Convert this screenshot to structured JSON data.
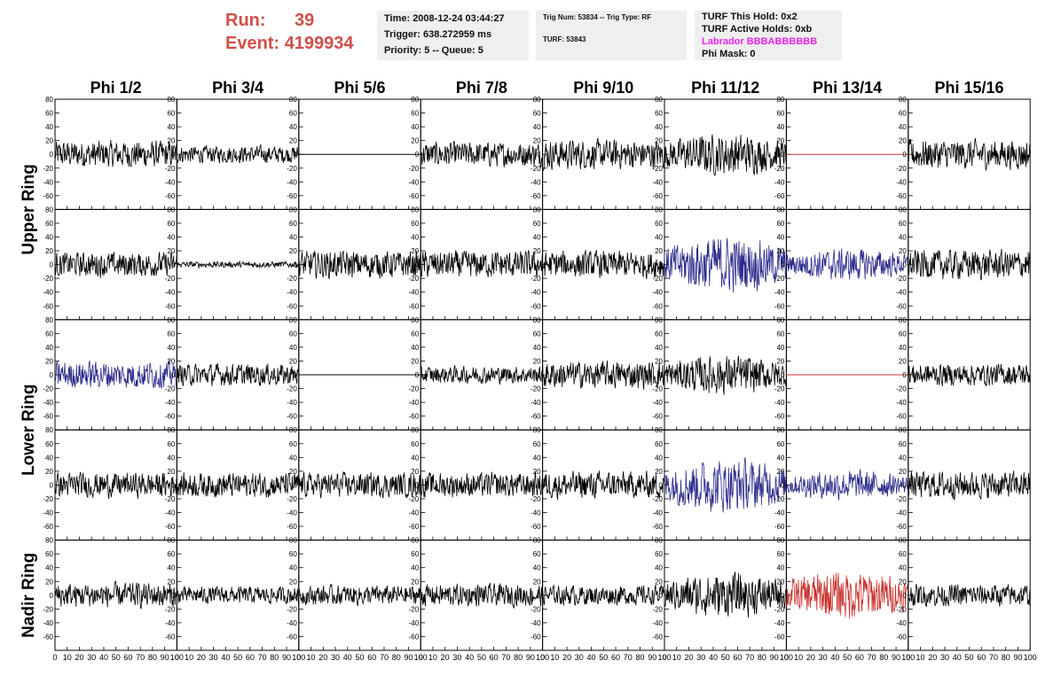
{
  "header": {
    "run_label": "Run:",
    "run_value": "39",
    "event_label": "Event:",
    "event_value": "4199934"
  },
  "info_box_1": {
    "time": "Time: 2008-12-24 03:44:27",
    "trigger": "Trigger: 638.272959 ms",
    "priority": "Priority: 5 -- Queue: 5"
  },
  "info_box_2": {
    "trig": "Trig Num: 53834 -- Trig Type: RF",
    "turf": "TURF: 53843"
  },
  "info_box_3": {
    "hold": "TURF This Hold: 0x2",
    "active": "TURF Active Holds: 0xb",
    "labrador": "Labrador BBBABBBBBB",
    "phimask": "Phi Mask: 0"
  },
  "colors": {
    "black": "#000000",
    "blue": "#2b2b8c",
    "red": "#c8302c",
    "run_text": "#d0504a",
    "labrador": "#ee22ee"
  },
  "chart_data": {
    "type": "line",
    "column_titles": [
      "Phi 1/2",
      "Phi 3/4",
      "Phi 5/6",
      "Phi 7/8",
      "Phi 9/10",
      "Phi 11/12",
      "Phi 13/14",
      "Phi 15/16"
    ],
    "ring_labels": [
      {
        "label": "Upper Ring"
      },
      {
        "label": "Lower Ring"
      },
      {
        "label": "Nadir Ring"
      }
    ],
    "y_ticks": [
      80,
      60,
      40,
      20,
      0,
      -20,
      -40,
      -60
    ],
    "x_ticks": [
      "0",
      "10",
      "20",
      "30",
      "40",
      "50",
      "60",
      "70",
      "80",
      "90",
      "100"
    ],
    "xlim": [
      0,
      100
    ],
    "ylim": [
      -80,
      80
    ],
    "grid": false,
    "panels": [
      [
        {
          "color": "black",
          "amp": 22
        },
        {
          "color": "black",
          "amp": 14
        },
        {
          "color": "black",
          "amp": 0
        },
        {
          "color": "black",
          "amp": 20
        },
        {
          "color": "black",
          "amp": 24
        },
        {
          "color": "black",
          "amp": 34
        },
        {
          "color": "red",
          "amp": 0
        },
        {
          "color": "black",
          "amp": 24
        }
      ],
      [
        {
          "color": "black",
          "amp": 20
        },
        {
          "color": "black",
          "amp": 5
        },
        {
          "color": "black",
          "amp": 22
        },
        {
          "color": "black",
          "amp": 22
        },
        {
          "color": "black",
          "amp": 22
        },
        {
          "color": "blue",
          "amp": 46
        },
        {
          "color": "blue",
          "amp": 26
        },
        {
          "color": "black",
          "amp": 24
        }
      ],
      [
        {
          "color": "blue",
          "amp": 22
        },
        {
          "color": "black",
          "amp": 18
        },
        {
          "color": "black",
          "amp": 0
        },
        {
          "color": "black",
          "amp": 14
        },
        {
          "color": "black",
          "amp": 22
        },
        {
          "color": "black",
          "amp": 32
        },
        {
          "color": "red",
          "amp": 0
        },
        {
          "color": "black",
          "amp": 18
        }
      ],
      [
        {
          "color": "black",
          "amp": 20
        },
        {
          "color": "black",
          "amp": 20
        },
        {
          "color": "black",
          "amp": 20
        },
        {
          "color": "black",
          "amp": 20
        },
        {
          "color": "black",
          "amp": 22
        },
        {
          "color": "blue",
          "amp": 44
        },
        {
          "color": "blue",
          "amp": 24
        },
        {
          "color": "black",
          "amp": 22
        }
      ],
      [
        {
          "color": "black",
          "amp": 20
        },
        {
          "color": "black",
          "amp": 14
        },
        {
          "color": "black",
          "amp": 16
        },
        {
          "color": "black",
          "amp": 18
        },
        {
          "color": "black",
          "amp": 16
        },
        {
          "color": "black",
          "amp": 36
        },
        {
          "color": "red",
          "amp": 40
        },
        {
          "color": "black",
          "amp": 18
        }
      ]
    ]
  }
}
